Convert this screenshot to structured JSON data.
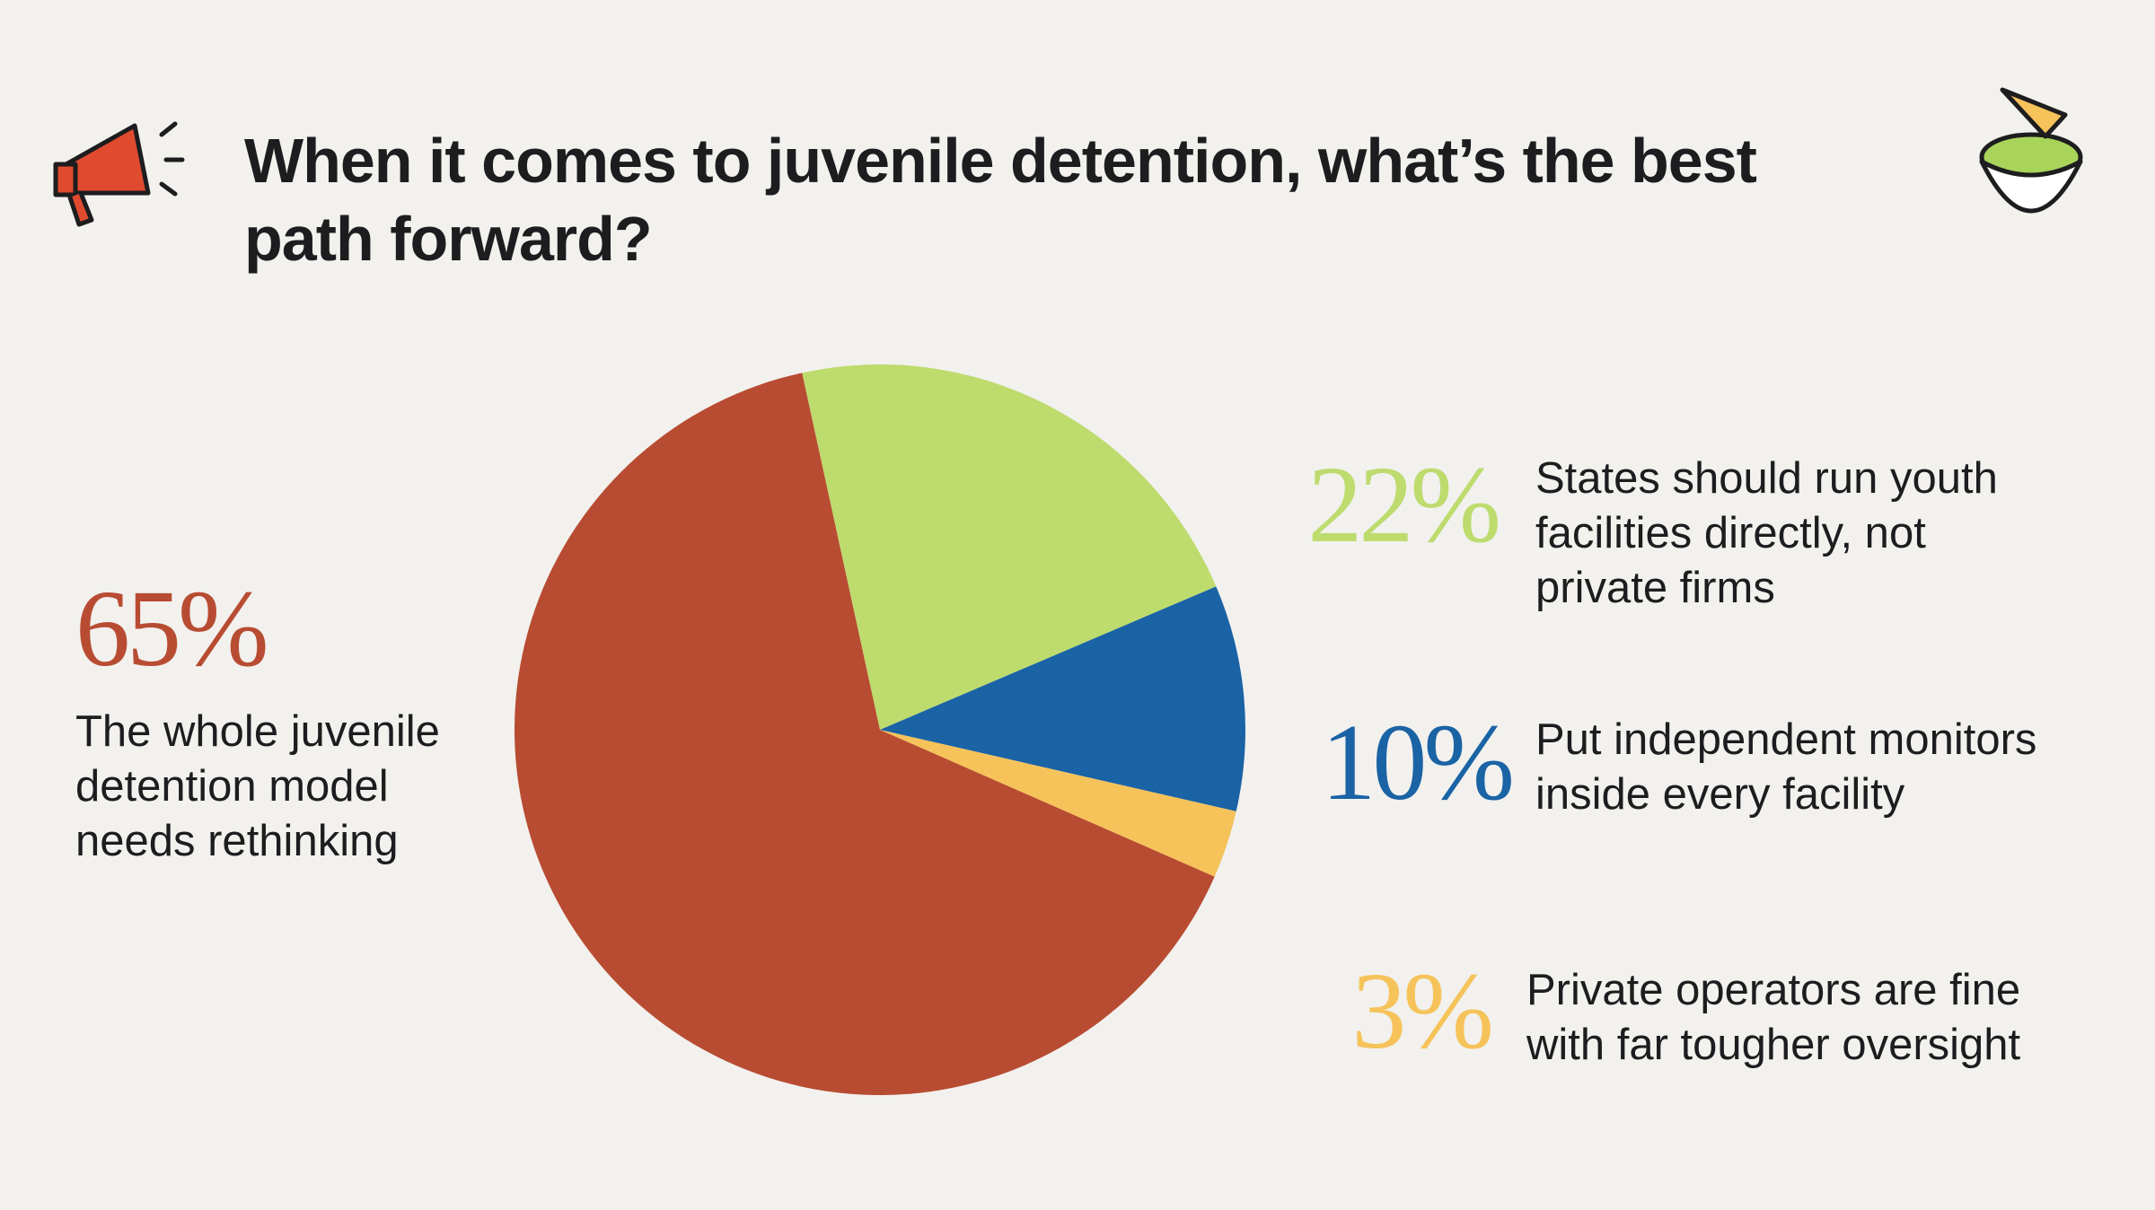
{
  "chart_data": {
    "type": "pie",
    "title": "When it comes to juvenile detention, what’s the best path forward?",
    "categories": [
      "The whole juvenile detention model needs rethinking",
      "States should run youth facilities directly, not private firms",
      "Put independent monitors inside every facility",
      "Private operators are fine with far tougher oversight"
    ],
    "values": [
      65,
      22,
      10,
      3
    ],
    "value_labels": [
      "65%",
      "22%",
      "10%",
      "3%"
    ],
    "colors": [
      "#b84c32",
      "#bedb6e",
      "#1a63a5",
      "#f6c35a"
    ]
  }
}
